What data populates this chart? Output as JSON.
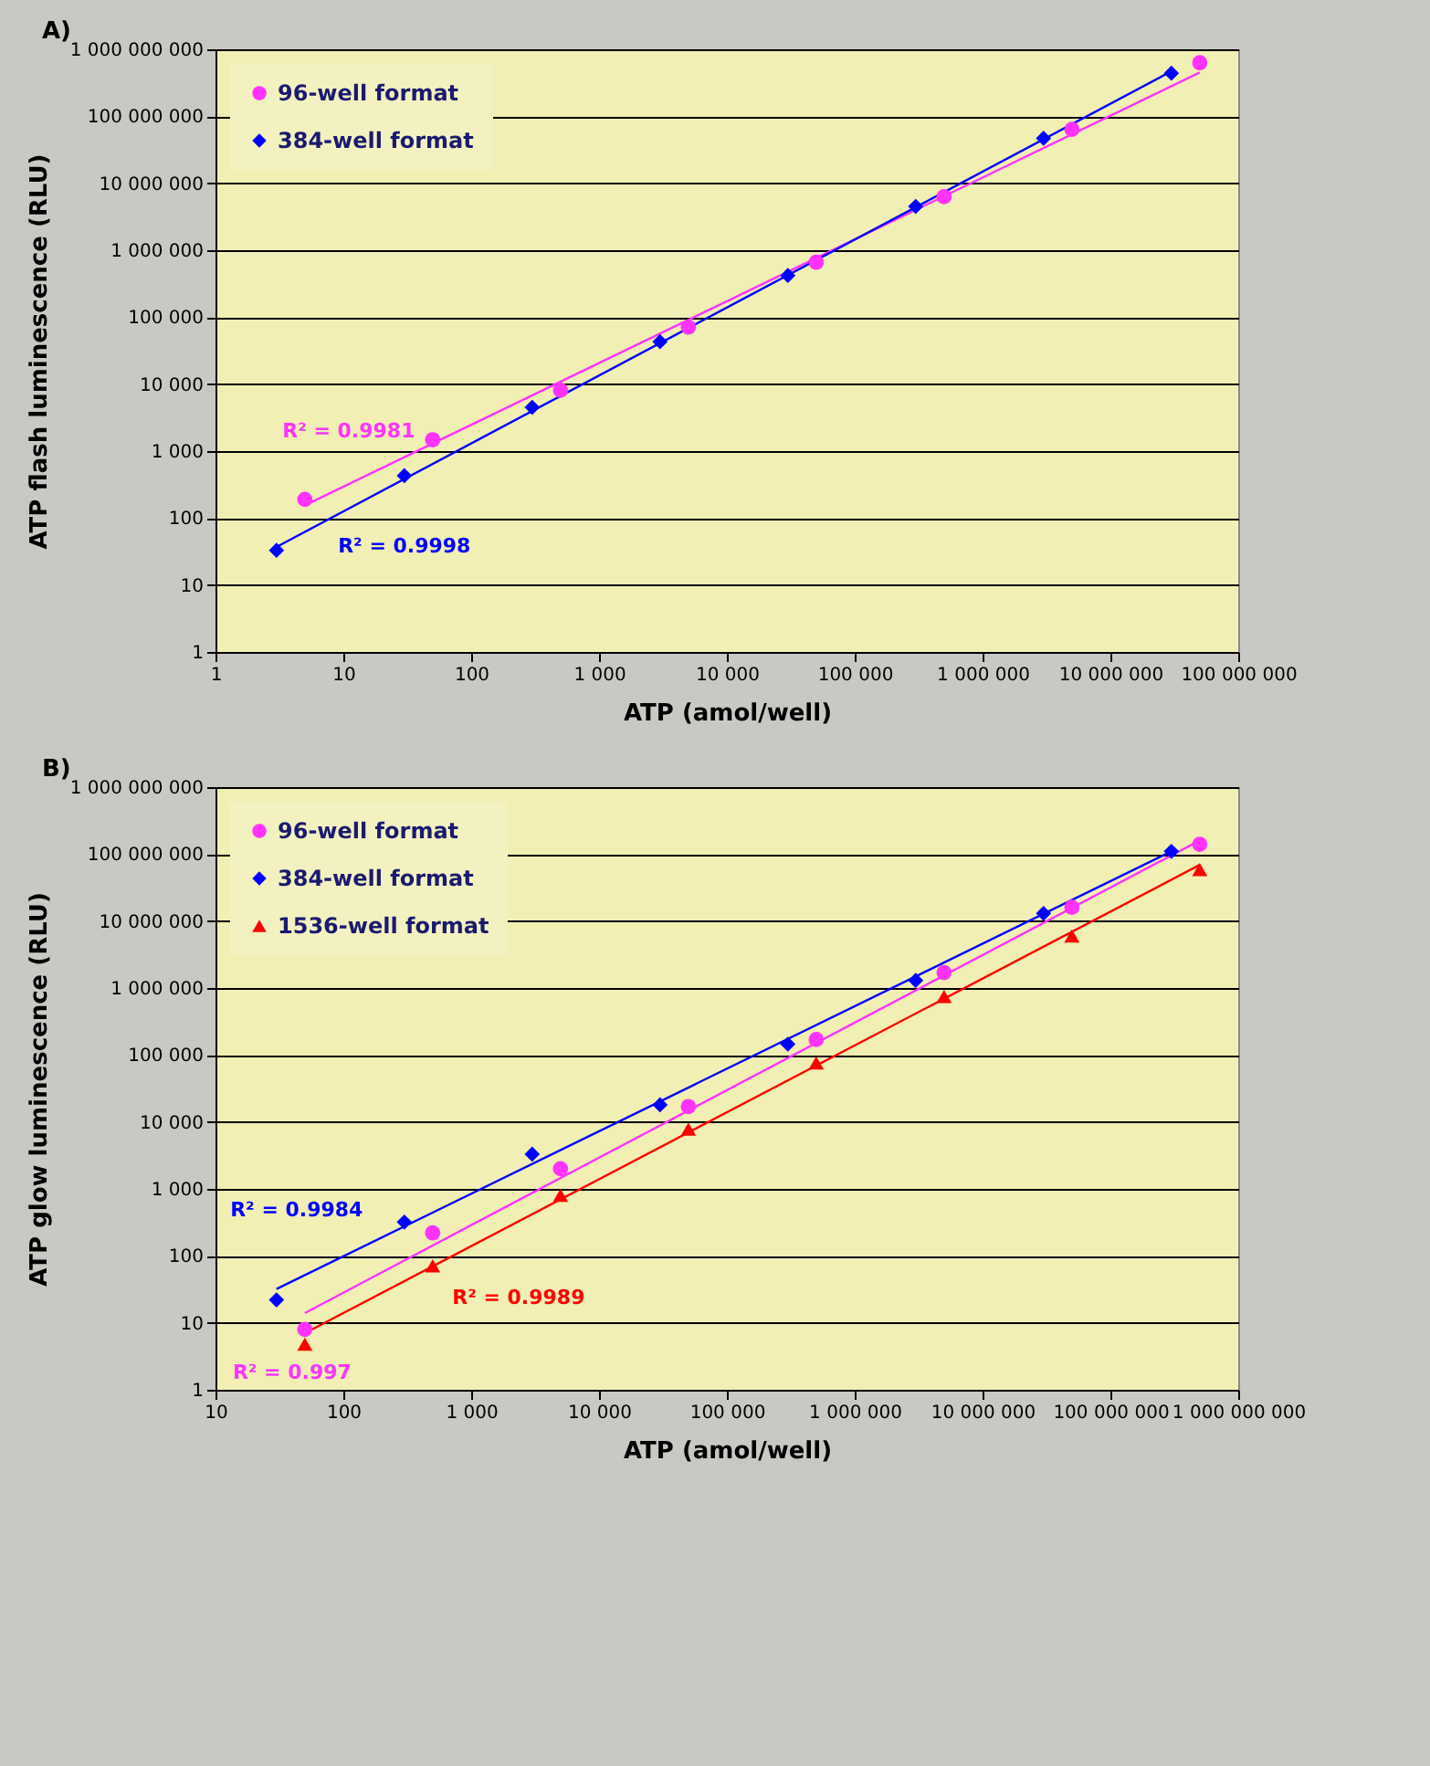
{
  "chart_data": [
    {
      "type": "scatter",
      "title": "A)",
      "xlabel": "ATP (amol/well)",
      "ylabel": "ATP flash luminescence (RLU)",
      "log": "xy",
      "grid": "y",
      "legend": "top left",
      "xlim": [
        1,
        100000000
      ],
      "xticks": [
        1,
        10,
        100,
        {
          "value": 1000,
          "label": "1 000"
        },
        {
          "value": 10000,
          "label": "10 000"
        },
        {
          "value": 100000,
          "label": "100 000"
        },
        {
          "value": 1000000,
          "label": "1 000 000"
        },
        {
          "value": 10000000,
          "label": "10 000 000"
        },
        {
          "value": 100000000,
          "label": "100 000 000"
        }
      ],
      "ylim": [
        1,
        1000000000
      ],
      "yticks": [
        1,
        10,
        100,
        {
          "value": 1000,
          "label": "1 000"
        },
        {
          "value": 10000,
          "label": "10 000"
        },
        {
          "value": 100000,
          "label": "100 000"
        },
        {
          "value": 1000000,
          "label": "1 000 000"
        },
        {
          "value": 10000000,
          "label": "10 000 000"
        },
        {
          "value": 100000000,
          "label": "100 000 000"
        },
        {
          "value": 1000000000,
          "label": "1 000 000 000"
        }
      ],
      "series": [
        {
          "name": "96-well format",
          "color": "#ff33ff",
          "marker": "circle",
          "x": [
            5,
            50,
            500,
            5000,
            50000,
            500000,
            5000000,
            50000000
          ],
          "values": [
            190,
            1480,
            8100,
            71000,
            660000,
            6300000,
            64000000,
            630000000
          ]
        },
        {
          "name": "384-well format",
          "color": "#0000ff",
          "marker": "diamond",
          "x": [
            3,
            30,
            300,
            3000,
            30000,
            300000,
            3000000,
            30000000
          ],
          "values": [
            33,
            430,
            4500,
            43000,
            420000,
            4500000,
            47000000,
            440000000
          ]
        },
        {
          "type": "line",
          "color": "#ff33ff",
          "marker": "none",
          "x": [
            5,
            50000000
          ],
          "values": [
            155,
            450000000
          ]
        },
        {
          "type": "line",
          "color": "#0000ff",
          "marker": "none",
          "x": [
            3,
            30000000
          ],
          "values": [
            37,
            470000000
          ]
        }
      ],
      "annotations": [
        "R² = 0.9981",
        "R² = 0.9998"
      ]
    },
    {
      "type": "scatter",
      "title": "B)",
      "xlabel": "ATP (amol/well)",
      "ylabel": "ATP glow luminescence (RLU)",
      "log": "xy",
      "grid": "y",
      "legend": "top left",
      "xlim": [
        10,
        1000000000
      ],
      "xticks": [
        10,
        100,
        {
          "value": 1000,
          "label": "1 000"
        },
        {
          "value": 10000,
          "label": "10 000"
        },
        {
          "value": 100000,
          "label": "100 000"
        },
        {
          "value": 1000000,
          "label": "1 000 000"
        },
        {
          "value": 10000000,
          "label": "10 000 000"
        },
        {
          "value": 100000000,
          "label": "100 000 000"
        },
        {
          "value": 1000000000,
          "label": "1 000 000 000"
        }
      ],
      "ylim": [
        1,
        1000000000
      ],
      "yticks": [
        1,
        10,
        100,
        {
          "value": 1000,
          "label": "1 000"
        },
        {
          "value": 10000,
          "label": "10 000"
        },
        {
          "value": 100000,
          "label": "100 000"
        },
        {
          "value": 1000000,
          "label": "1 000 000"
        },
        {
          "value": 10000000,
          "label": "10 000 000"
        },
        {
          "value": 100000000,
          "label": "100 000 000"
        },
        {
          "value": 1000000000,
          "label": "1 000 000 000"
        }
      ],
      "series": [
        {
          "name": "96-well format",
          "color": "#ff33ff",
          "marker": "circle",
          "x": [
            50,
            500,
            5000,
            50000,
            500000,
            5000000,
            50000000,
            500000000
          ],
          "values": [
            8,
            220,
            2000,
            17000,
            170000,
            1700000,
            16000000,
            140000000
          ]
        },
        {
          "name": "384-well format",
          "color": "#0000ff",
          "marker": "diamond",
          "x": [
            30,
            300,
            3000,
            30000,
            300000,
            3000000,
            30000000,
            300000000
          ],
          "values": [
            22,
            320,
            3300,
            18000,
            145000,
            1300000,
            13000000,
            110000000
          ]
        },
        {
          "name": "1536-well format",
          "color": "#ff0000",
          "marker": "triangle",
          "x": [
            50,
            500,
            5000,
            50000,
            500000,
            5000000,
            50000000,
            500000000
          ],
          "values": [
            4.8,
            71,
            800,
            7800,
            76000,
            750000,
            6000000,
            59000000
          ]
        },
        {
          "type": "line",
          "color": "#ff33ff",
          "marker": "none",
          "x": [
            50,
            500000000
          ],
          "values": [
            14,
            160000000
          ]
        },
        {
          "type": "line",
          "color": "#0000ff",
          "marker": "none",
          "x": [
            30,
            300000000
          ],
          "values": [
            32,
            110000000
          ]
        },
        {
          "type": "line",
          "color": "#ff0000",
          "marker": "none",
          "x": [
            50,
            500000000
          ],
          "values": [
            7,
            69000000
          ]
        }
      ],
      "annotations": [
        "R² = 0.997",
        "R² = 0.9984",
        "R² = 0.9989"
      ]
    }
  ]
}
